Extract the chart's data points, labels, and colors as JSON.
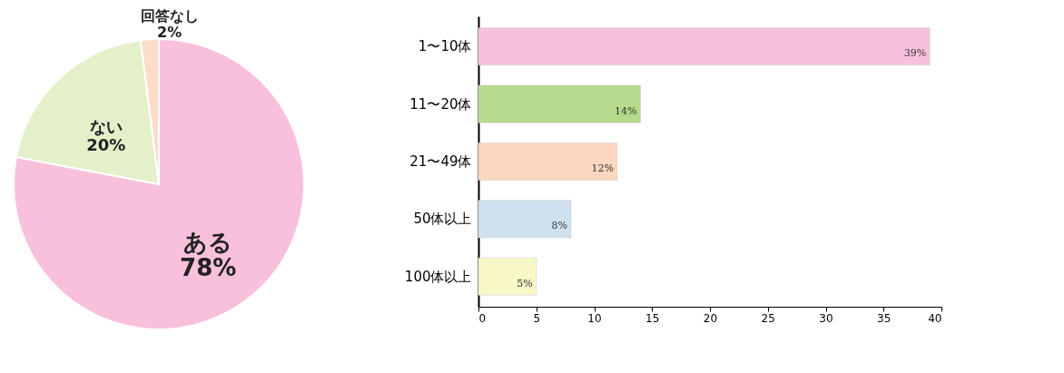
{
  "chart_data": [
    {
      "type": "pie",
      "categories": [
        "ある",
        "ない",
        "回答なし"
      ],
      "values": [
        78,
        20,
        2
      ],
      "colors": [
        "#f9c0dc",
        "#e3f0c9",
        "#fddcc8"
      ],
      "value_labels": [
        "78%",
        "20%",
        "2%"
      ],
      "legend": false
    },
    {
      "type": "bar",
      "orientation": "horizontal",
      "categories": [
        "1〜10体",
        "11〜20体",
        "21〜49体",
        "50体以上",
        "100体以上"
      ],
      "values": [
        39,
        14,
        12,
        8,
        5
      ],
      "colors": [
        "#f9c0dc",
        "#b6da8c",
        "#fcd6be",
        "#cfe1ef",
        "#f7f8c6"
      ],
      "value_labels": [
        "39%",
        "14%",
        "12%",
        "8%",
        "5%"
      ],
      "xlim": [
        0,
        40
      ],
      "xticks": [
        0,
        5,
        10,
        15,
        20,
        25,
        30,
        35,
        40
      ],
      "grid": false
    }
  ]
}
